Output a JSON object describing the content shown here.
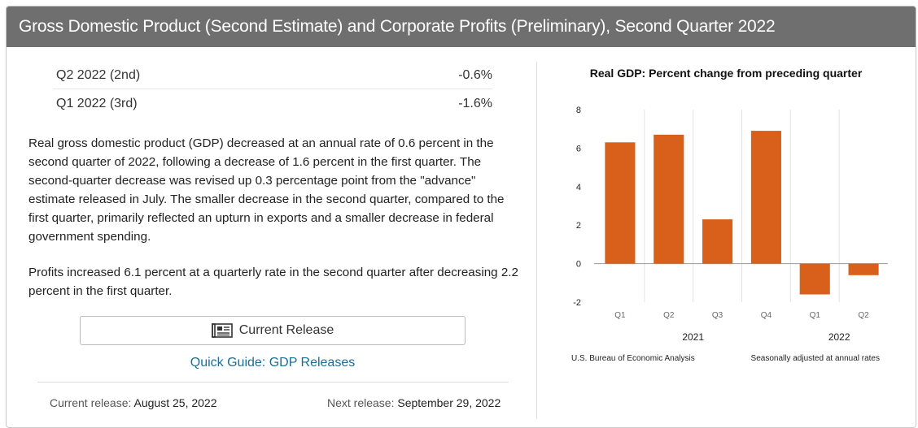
{
  "header": {
    "title": "Gross Domestic Product (Second Estimate) and Corporate Profits (Preliminary), Second Quarter 2022"
  },
  "summary": [
    {
      "label": "Q2 2022 (2nd)",
      "value": "-0.6%"
    },
    {
      "label": "Q1 2022 (3rd)",
      "value": "-1.6%"
    }
  ],
  "paragraphs": {
    "gdp": "Real gross domestic product (GDP) decreased at an annual rate of 0.6 percent in the second quarter of 2022, following a decrease of 1.6 percent in the first quarter. The second-quarter decrease was revised up 0.3 percentage point from the \"advance\" estimate released in July. The smaller decrease in the second quarter, compared to the first quarter, primarily reflected an upturn in exports and a smaller decrease in federal government spending.",
    "profits": "Profits increased 6.1 percent at a quarterly rate in the second quarter after decreasing 2.2 percent in the first quarter."
  },
  "actions": {
    "current_release_label": "Current Release",
    "current_release_icon": "newspaper-icon",
    "quick_guide_label": "Quick Guide: GDP Releases"
  },
  "release_dates": {
    "current_label": "Current release:",
    "current_value": "August 25, 2022",
    "next_label": "Next release:",
    "next_value": "September 29, 2022"
  },
  "chart_data": {
    "type": "bar",
    "title": "Real GDP:  Percent change from preceding quarter",
    "categories": [
      "Q1",
      "Q2",
      "Q3",
      "Q4",
      "Q1",
      "Q2"
    ],
    "groups": [
      {
        "label": "2021",
        "count": 4
      },
      {
        "label": "2022",
        "count": 2
      }
    ],
    "values": [
      6.3,
      6.7,
      2.3,
      6.9,
      -1.6,
      -0.6
    ],
    "ylim": [
      -2,
      8
    ],
    "yticks": [
      "8",
      "6",
      "4",
      "2",
      "0",
      "-2"
    ],
    "ytick_values": [
      8,
      6,
      4,
      2,
      0,
      -2
    ],
    "bar_color": "#d9601a",
    "grid": false,
    "source_note": "U.S. Bureau of Economic Analysis",
    "adjustment_note": "Seasonally adjusted at annual rates"
  }
}
